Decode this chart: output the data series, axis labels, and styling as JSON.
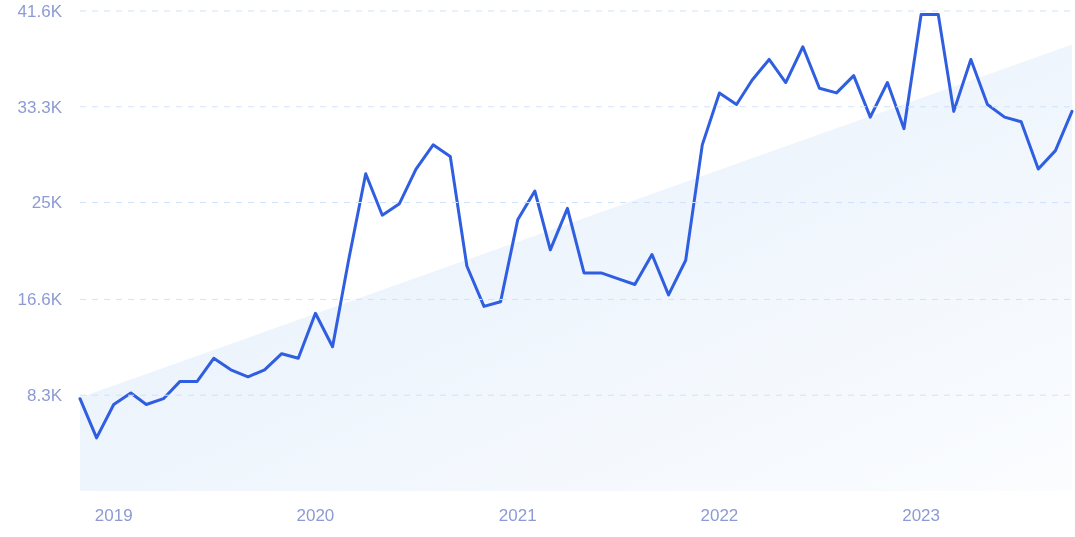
{
  "chart_data": {
    "type": "line",
    "x": [
      "2018-11",
      "2018-12",
      "2019-01",
      "2019-02",
      "2019-03",
      "2019-04",
      "2019-05",
      "2019-06",
      "2019-07",
      "2019-08",
      "2019-09",
      "2019-10",
      "2019-11",
      "2019-12",
      "2020-01",
      "2020-02",
      "2020-03",
      "2020-04",
      "2020-05",
      "2020-06",
      "2020-07",
      "2020-08",
      "2020-09",
      "2020-10",
      "2020-11",
      "2020-12",
      "2021-01",
      "2021-02",
      "2021-03",
      "2021-04",
      "2021-05",
      "2021-06",
      "2021-07",
      "2021-08",
      "2021-09",
      "2021-10",
      "2021-11",
      "2021-12",
      "2022-01",
      "2022-02",
      "2022-03",
      "2022-04",
      "2022-05",
      "2022-06",
      "2022-07",
      "2022-08",
      "2022-09",
      "2022-10",
      "2022-11",
      "2022-12",
      "2023-01",
      "2023-02",
      "2023-03",
      "2023-04",
      "2023-05",
      "2023-06",
      "2023-07",
      "2023-08",
      "2023-09",
      "2023-10"
    ],
    "series": [
      {
        "type": "area",
        "color": "#e3eefb",
        "x": [
          "2018-11",
          "2023-10"
        ],
        "values": [
          8.1,
          38.7
        ]
      },
      {
        "color": "#2f5fe0",
        "values": [
          8.0,
          4.6,
          7.5,
          8.5,
          7.5,
          8.0,
          9.5,
          9.5,
          11.5,
          10.5,
          9.9,
          10.5,
          11.9,
          11.5,
          15.4,
          12.5,
          20.0,
          27.5,
          23.9,
          24.9,
          27.9,
          30.0,
          29.0,
          19.5,
          16.0,
          16.4,
          23.5,
          26.0,
          20.9,
          24.5,
          18.9,
          18.9,
          18.4,
          17.9,
          20.5,
          17.0,
          20.0,
          30.0,
          34.5,
          33.5,
          35.6,
          37.4,
          35.4,
          38.5,
          34.9,
          34.5,
          36.0,
          32.4,
          35.4,
          31.4,
          41.3,
          41.3,
          32.9,
          37.4,
          33.5,
          32.4,
          32.0,
          27.9,
          29.5,
          32.9
        ]
      }
    ],
    "xlim": [
      "2018-11",
      "2023-10"
    ],
    "xticks": [
      "2019",
      "2020",
      "2021",
      "2022",
      "2023"
    ],
    "ylim": [
      0,
      41.6
    ],
    "yticks": [
      {
        "value": 8.3,
        "label": "8.3K"
      },
      {
        "value": 16.6,
        "label": "16.6K"
      },
      {
        "value": 25,
        "label": "25K"
      },
      {
        "value": 33.3,
        "label": "33.3K"
      },
      {
        "value": 41.6,
        "label": "41.6K"
      }
    ],
    "grid": "y",
    "line_style": "solid",
    "marker": "none"
  }
}
